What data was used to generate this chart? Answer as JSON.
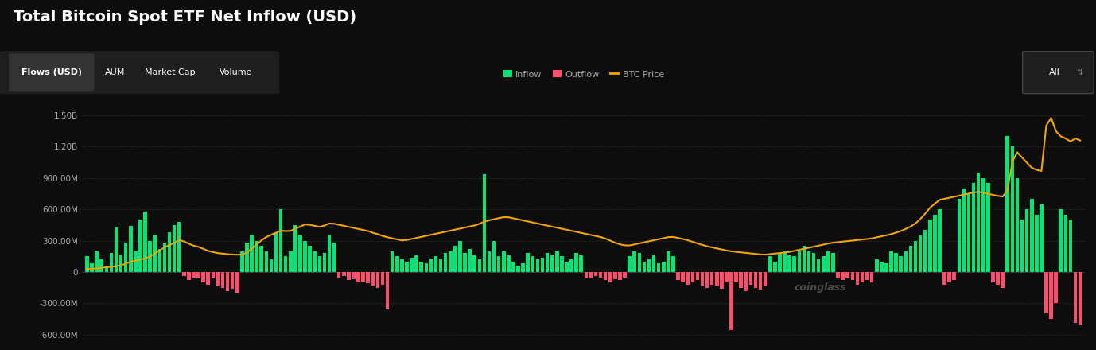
{
  "title": "Total Bitcoin Spot ETF Net Inflow (USD)",
  "background_color": "#0d0d0d",
  "plot_bg_color": "#0d0d0d",
  "inflow_color": "#00e676",
  "outflow_color": "#ff4d6d",
  "btc_color": "#f0a500",
  "grid_color": "#2a2a2a",
  "text_color": "#aaaaaa",
  "ylim_min": -680000000,
  "ylim_max": 1600000000,
  "yticks": [
    -600000000,
    -300000000,
    0,
    300000000,
    600000000,
    900000000,
    1200000000,
    1500000000
  ],
  "ytick_labels": [
    "-600.00M",
    "-300.00M",
    "0",
    "300.00M",
    "600.00M",
    "900.00M",
    "1.20B",
    "1.50B"
  ],
  "subtitle_tabs": [
    "Flows (USD)",
    "AUM",
    "Market Cap",
    "Volume"
  ],
  "legend_items": [
    "Inflow",
    "Outflow",
    "BTC Price"
  ],
  "bar_values_M": [
    150,
    80,
    200,
    120,
    50,
    180,
    430,
    170,
    280,
    440,
    200,
    500,
    580,
    300,
    350,
    220,
    280,
    380,
    450,
    480,
    -40,
    -80,
    -50,
    -60,
    -100,
    -120,
    -60,
    -130,
    -150,
    -180,
    -160,
    -200,
    200,
    280,
    350,
    300,
    250,
    200,
    120,
    380,
    600,
    150,
    200,
    450,
    350,
    300,
    250,
    200,
    150,
    180,
    350,
    280,
    -50,
    -40,
    -80,
    -70,
    -100,
    -90,
    -110,
    -130,
    -150,
    -120,
    -360,
    200,
    150,
    120,
    100,
    140,
    160,
    100,
    80,
    130,
    150,
    120,
    180,
    200,
    250,
    300,
    180,
    220,
    160,
    120,
    940,
    200,
    300,
    150,
    200,
    160,
    100,
    60,
    80,
    180,
    150,
    120,
    140,
    180,
    160,
    200,
    150,
    100,
    120,
    180,
    160,
    -50,
    -60,
    -40,
    -50,
    -80,
    -100,
    -70,
    -80,
    -50,
    150,
    200,
    180,
    100,
    120,
    160,
    80,
    100,
    200,
    150,
    -80,
    -100,
    -120,
    -100,
    -80,
    -130,
    -150,
    -120,
    -140,
    -160,
    -100,
    -560,
    -100,
    -150,
    -180,
    -120,
    -150,
    -170,
    -140,
    150,
    100,
    180,
    200,
    160,
    150,
    200,
    250,
    200,
    180,
    120,
    150,
    200,
    180,
    -60,
    -80,
    -50,
    -80,
    -120,
    -100,
    -80,
    -100,
    120,
    100,
    80,
    200,
    180,
    150,
    200,
    250,
    300,
    350,
    400,
    500,
    550,
    600,
    -120,
    -100,
    -80,
    700,
    800,
    750,
    850,
    950,
    900,
    850,
    -100,
    -120,
    -150,
    1300,
    1200,
    900,
    500,
    600,
    700,
    550,
    650,
    -400,
    -450,
    -300,
    600,
    550,
    500,
    -490,
    -510
  ],
  "btc_price_M": [
    30,
    32,
    35,
    40,
    45,
    50,
    55,
    65,
    80,
    100,
    110,
    120,
    130,
    150,
    180,
    210,
    240,
    260,
    280,
    310,
    290,
    270,
    250,
    240,
    220,
    200,
    190,
    180,
    175,
    170,
    168,
    165,
    170,
    190,
    230,
    270,
    310,
    340,
    360,
    380,
    400,
    390,
    395,
    420,
    440,
    460,
    450,
    440,
    430,
    450,
    470,
    460,
    450,
    440,
    430,
    420,
    410,
    400,
    390,
    370,
    360,
    340,
    330,
    320,
    310,
    300,
    310,
    320,
    330,
    340,
    350,
    360,
    370,
    380,
    390,
    400,
    410,
    420,
    430,
    440,
    450,
    470,
    490,
    500,
    510,
    520,
    530,
    520,
    510,
    500,
    490,
    480,
    470,
    460,
    450,
    440,
    430,
    420,
    410,
    400,
    390,
    380,
    370,
    360,
    350,
    340,
    330,
    310,
    290,
    270,
    260,
    250,
    260,
    270,
    280,
    290,
    300,
    310,
    320,
    330,
    340,
    330,
    320,
    310,
    295,
    280,
    265,
    250,
    240,
    230,
    220,
    210,
    200,
    195,
    190,
    185,
    180,
    175,
    170,
    165,
    170,
    175,
    180,
    185,
    190,
    200,
    210,
    220,
    230,
    240,
    250,
    260,
    270,
    280,
    285,
    290,
    295,
    300,
    305,
    310,
    315,
    320,
    330,
    340,
    350,
    360,
    375,
    390,
    410,
    430,
    460,
    500,
    550,
    610,
    650,
    690,
    700,
    710,
    720,
    730,
    740,
    750,
    760,
    770,
    760,
    750,
    740,
    730,
    720,
    760,
    1050,
    1150,
    1100,
    1050,
    1000,
    980,
    950,
    1400,
    1480,
    1350,
    1300,
    1280,
    1250,
    1280,
    1260
  ]
}
